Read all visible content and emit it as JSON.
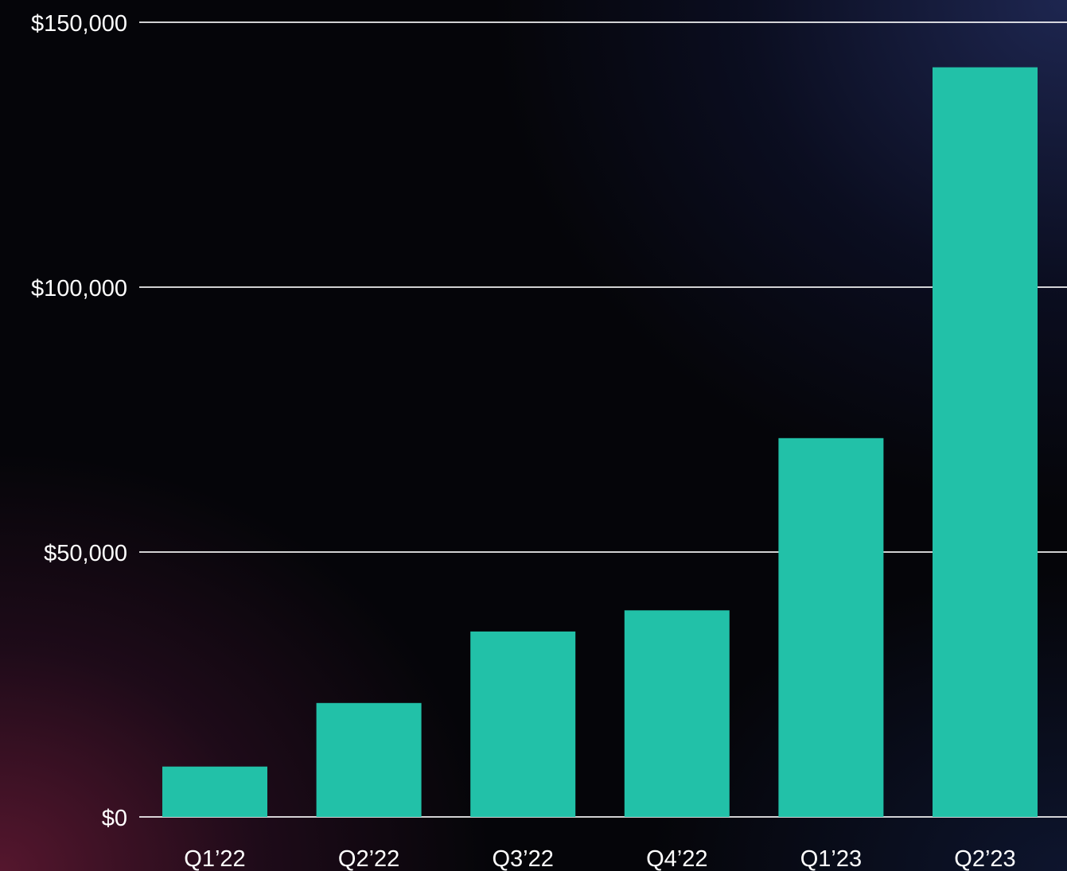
{
  "chart_data": {
    "type": "bar",
    "categories": [
      "Q1’22",
      "Q2’22",
      "Q3’22",
      "Q4’22",
      "Q1’23",
      "Q2’23"
    ],
    "values": [
      9500,
      21500,
      35000,
      39000,
      71500,
      141500
    ],
    "title": "",
    "xlabel": "",
    "ylabel": "",
    "ylim": [
      0,
      150000
    ],
    "y_ticks": [
      0,
      50000,
      100000,
      150000
    ],
    "y_tick_labels": [
      "$0",
      "$50,000",
      "$100,000",
      "$150,000"
    ],
    "grid": true,
    "bar_color": "#22c1a8",
    "background": "#050509"
  }
}
